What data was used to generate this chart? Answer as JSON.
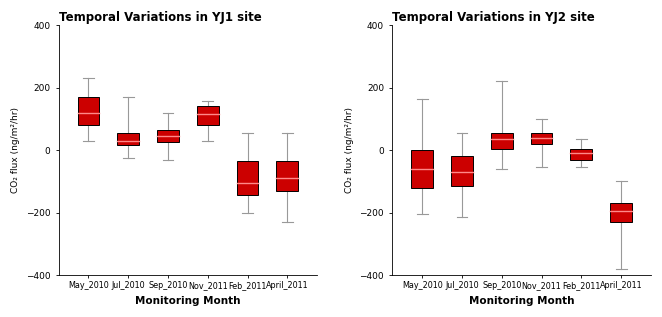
{
  "title1": "Temporal Variations in YJ1 site",
  "title2": "Temporal Variations in YJ2 site",
  "xlabel": "Monitoring Month",
  "ylabel": "CO₂ flux (ng/m²/hr)",
  "categories": [
    "May_2010",
    "Jul_2010",
    "Sep_2010",
    "Nov_2011",
    "Feb_2011",
    "April_2011"
  ],
  "ylim": [
    -400,
    400
  ],
  "yticks": [
    -400,
    -200,
    0,
    200,
    400
  ],
  "box_color": "#cc0000",
  "whisker_color": "#999999",
  "median_color": "#ff8888",
  "yj1": [
    {
      "whislo": 30,
      "q1": 80,
      "med": 120,
      "q3": 170,
      "whishi": 230
    },
    {
      "whislo": -25,
      "q1": 15,
      "med": 30,
      "q3": 55,
      "whishi": 170
    },
    {
      "whislo": -30,
      "q1": 25,
      "med": 45,
      "q3": 65,
      "whishi": 120
    },
    {
      "whislo": 30,
      "q1": 80,
      "med": 115,
      "q3": 140,
      "whishi": 158
    },
    {
      "whislo": -200,
      "q1": -145,
      "med": -105,
      "q3": -35,
      "whishi": 55
    },
    {
      "whislo": -230,
      "q1": -130,
      "med": -90,
      "q3": -35,
      "whishi": 55
    }
  ],
  "yj2": [
    {
      "whislo": -205,
      "q1": -120,
      "med": -60,
      "q3": 0,
      "whishi": 165
    },
    {
      "whislo": -215,
      "q1": -115,
      "med": -70,
      "q3": -20,
      "whishi": 55
    },
    {
      "whislo": -60,
      "q1": 5,
      "med": 35,
      "q3": 55,
      "whishi": 220
    },
    {
      "whislo": -55,
      "q1": 20,
      "med": 40,
      "q3": 55,
      "whishi": 100
    },
    {
      "whislo": -55,
      "q1": -30,
      "med": -10,
      "q3": 5,
      "whishi": 35
    },
    {
      "whislo": -380,
      "q1": -230,
      "med": -195,
      "q3": -170,
      "whishi": -100
    }
  ]
}
